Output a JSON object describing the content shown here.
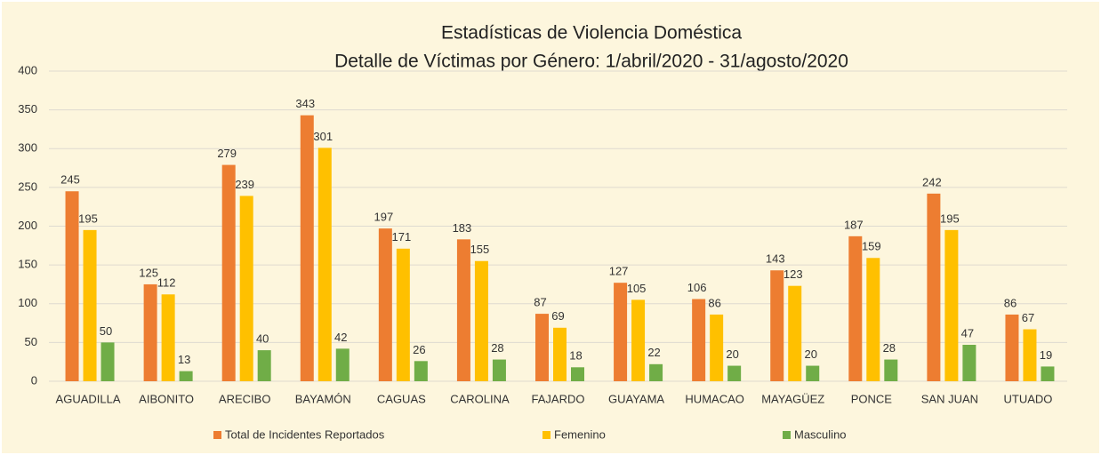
{
  "chart_data": {
    "type": "bar",
    "title": "Estadísticas de Violencia Doméstica",
    "subtitle": "Detalle de Víctimas por Género: 1/abril/2020 - 31/agosto/2020",
    "categories": [
      "AGUADILLA",
      "AIBONITO",
      "ARECIBO",
      "BAYAMÓN",
      "CAGUAS",
      "CAROLINA",
      "FAJARDO",
      "GUAYAMA",
      "HUMACAO",
      "MAYAGÜEZ",
      "PONCE",
      "SAN JUAN",
      "UTUADO"
    ],
    "series": [
      {
        "name": "Total de Incidentes Reportados",
        "color": "#ed7d31",
        "values": [
          245,
          125,
          279,
          343,
          197,
          183,
          87,
          127,
          106,
          143,
          187,
          242,
          86
        ]
      },
      {
        "name": "Femenino",
        "color": "#ffc000",
        "values": [
          195,
          112,
          239,
          301,
          171,
          155,
          69,
          105,
          86,
          123,
          159,
          195,
          67
        ]
      },
      {
        "name": "Masculino",
        "color": "#70ad47",
        "values": [
          50,
          13,
          40,
          42,
          26,
          28,
          18,
          22,
          20,
          20,
          28,
          47,
          19
        ]
      }
    ],
    "ylim": [
      0,
      400
    ],
    "yticks": [
      0,
      50,
      100,
      150,
      200,
      250,
      300,
      350,
      400
    ],
    "grid": true,
    "legend": "bottom"
  }
}
